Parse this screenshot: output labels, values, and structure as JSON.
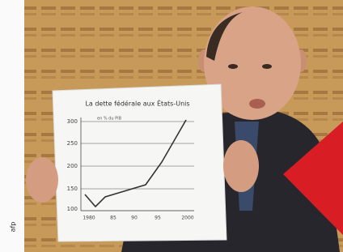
{
  "photo": {
    "sign": {
      "title": "La dette fédérale aux États-Unis",
      "unit": "en % du PIB",
      "yticks": [
        "300",
        "250",
        "200",
        "150",
        "100"
      ],
      "xticks": [
        "1980",
        "85",
        "90",
        "95",
        "2000"
      ]
    },
    "credit": "afp"
  }
}
